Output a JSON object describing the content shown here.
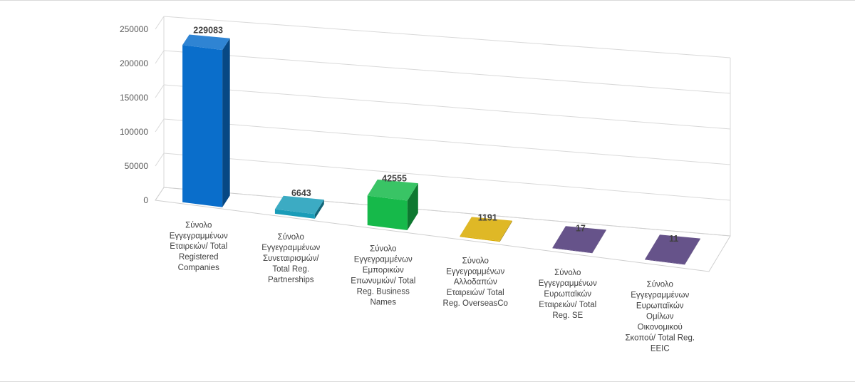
{
  "chart_data": {
    "type": "bar",
    "style": "3d-column",
    "categories": [
      [
        "Σύνολο",
        "Εγγεγραμμένων",
        "Εταιρειών/ Total",
        "Registered",
        "Companies"
      ],
      [
        "Σύνολο",
        "Εγγεγραμμένων",
        "Συνεταιρισμών/",
        "Total Reg.",
        "Partnerships"
      ],
      [
        "Σύνολο",
        "Εγγεγραμμένων",
        "Εμπορικών",
        "Επωνυμιών/ Total",
        "Reg. Business",
        "Names"
      ],
      [
        "Σύνολο",
        "Εγγεγραμμένων",
        "Αλλοδαπών",
        "Εταιρειών/ Total",
        "Reg. OverseasCo"
      ],
      [
        "Σύνολο",
        "Εγγεγραμμένων",
        "Ευρωπαϊκών",
        "Εταιρειών/ Total",
        "Reg. SE"
      ],
      [
        "Σύνολο",
        "Εγγεγραμμένων",
        "Ευρωπαϊκών",
        "Ομίλων",
        "Οικονομικού",
        "Σκοπού/ Total Reg.",
        "EEIC"
      ]
    ],
    "values": [
      229083,
      6643,
      42555,
      1191,
      17,
      11
    ],
    "data_labels": [
      "229083",
      "6643",
      "42555",
      "1191",
      "17",
      "11"
    ],
    "bar_colors": [
      "#0a6ecb",
      "#1a9cb8",
      "#16b94a",
      "#d9ab00",
      "#4b3575",
      "#4b3575"
    ],
    "ylim": [
      0,
      250000
    ],
    "yticks": [
      "0",
      "50000",
      "100000",
      "150000",
      "200000",
      "250000"
    ],
    "grid": true,
    "legend": "none",
    "title": "",
    "xlabel": "",
    "ylabel": ""
  }
}
